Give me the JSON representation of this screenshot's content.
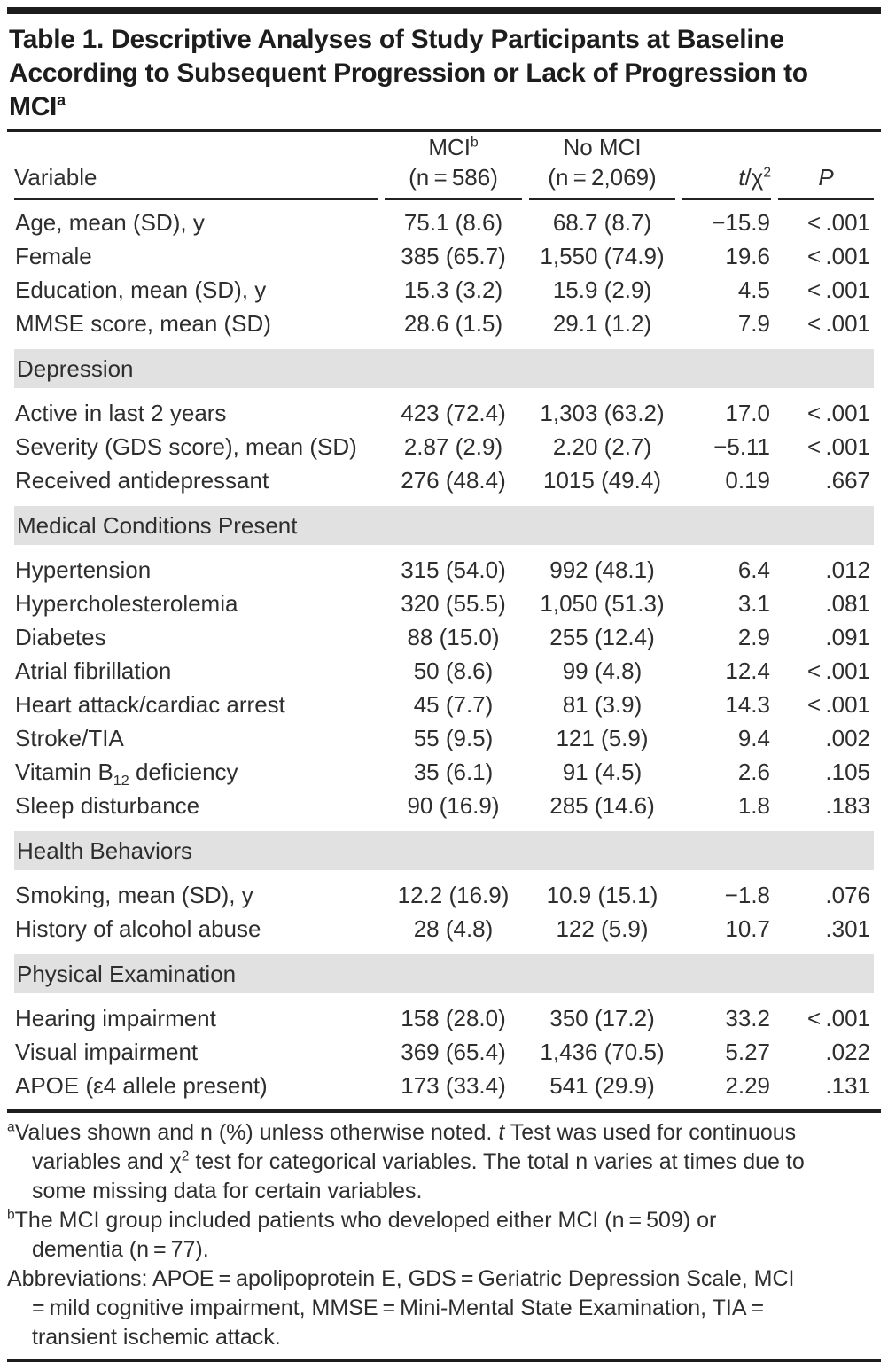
{
  "title_html": "Table 1. Descriptive Analyses of Study Participants at Baseline According to Subsequent Progression or Lack of Progression to MCI<sup>a</sup>",
  "header": {
    "variable": "Variable",
    "mci_line1_html": "MCI<sup>b</sup>",
    "mci_line2": "(n = 586)",
    "nomci_line1": "No MCI",
    "nomci_line2": "(n = 2,069)",
    "stat_html": "<i>t</i>/χ<sup>2</sup>",
    "p_html": "<i>P</i>"
  },
  "sections": [
    {
      "heading": null,
      "rows": [
        {
          "label_html": "Age, mean (SD), y",
          "mci": "75.1 (8.6)",
          "no_mci": "68.7 (8.7)",
          "stat": "−15.9",
          "p": "< .001"
        },
        {
          "label_html": "Female",
          "mci": "385 (65.7)",
          "no_mci": "1,550 (74.9)",
          "stat": "19.6",
          "p": "< .001"
        },
        {
          "label_html": "Education, mean (SD), y",
          "mci": "15.3 (3.2)",
          "no_mci": "15.9 (2.9)",
          "stat": "4.5",
          "p": "< .001"
        },
        {
          "label_html": "MMSE score, mean (SD)",
          "mci": "28.6 (1.5)",
          "no_mci": "29.1 (1.2)",
          "stat": "7.9",
          "p": "< .001"
        }
      ]
    },
    {
      "heading": "Depression",
      "rows": [
        {
          "label_html": "Active in last 2 years",
          "mci": "423 (72.4)",
          "no_mci": "1,303 (63.2)",
          "stat": "17.0",
          "p": "< .001"
        },
        {
          "label_html": "Severity (GDS score), mean (SD)",
          "mci": "2.87 (2.9)",
          "no_mci": "2.20 (2.7)",
          "stat": "−5.11",
          "p": "< .001"
        },
        {
          "label_html": "Received antidepressant",
          "mci": "276 (48.4)",
          "no_mci": "1015 (49.4)",
          "stat": "0.19",
          "p": ".667"
        }
      ]
    },
    {
      "heading": "Medical Conditions Present",
      "rows": [
        {
          "label_html": "Hypertension",
          "mci": "315 (54.0)",
          "no_mci": "992 (48.1)",
          "stat": "6.4",
          "p": ".012"
        },
        {
          "label_html": "Hypercholesterolemia",
          "mci": "320 (55.5)",
          "no_mci": "1,050 (51.3)",
          "stat": "3.1",
          "p": ".081"
        },
        {
          "label_html": "Diabetes",
          "mci": "88 (15.0)",
          "no_mci": "255 (12.4)",
          "stat": "2.9",
          "p": ".091"
        },
        {
          "label_html": "Atrial fibrillation",
          "mci": "50 (8.6)",
          "no_mci": "99 (4.8)",
          "stat": "12.4",
          "p": "< .001"
        },
        {
          "label_html": "Heart attack/cardiac arrest",
          "mci": "45 (7.7)",
          "no_mci": "81 (3.9)",
          "stat": "14.3",
          "p": "< .001"
        },
        {
          "label_html": "Stroke/TIA",
          "mci": "55 (9.5)",
          "no_mci": "121 (5.9)",
          "stat": "9.4",
          "p": ".002"
        },
        {
          "label_html": "Vitamin B<sub>12</sub> deficiency",
          "mci": "35 (6.1)",
          "no_mci": "91 (4.5)",
          "stat": "2.6",
          "p": ".105"
        },
        {
          "label_html": "Sleep disturbance",
          "mci": "90 (16.9)",
          "no_mci": "285 (14.6)",
          "stat": "1.8",
          "p": ".183"
        }
      ]
    },
    {
      "heading": "Health Behaviors",
      "rows": [
        {
          "label_html": "Smoking, mean (SD), y",
          "mci": "12.2 (16.9)",
          "no_mci": "10.9 (15.1)",
          "stat": "−1.8",
          "p": ".076"
        },
        {
          "label_html": "History of alcohol abuse",
          "mci": "28 (4.8)",
          "no_mci": "122 (5.9)",
          "stat": "10.7",
          "p": ".301"
        }
      ]
    },
    {
      "heading": "Physical Examination",
      "rows": [
        {
          "label_html": "Hearing impairment",
          "mci": "158 (28.0)",
          "no_mci": "350 (17.2)",
          "stat": "33.2",
          "p": "< .001"
        },
        {
          "label_html": "Visual impairment",
          "mci": "369 (65.4)",
          "no_mci": "1,436 (70.5)",
          "stat": "5.27",
          "p": ".022"
        },
        {
          "label_html": "APOE (ε4 allele present)",
          "mci": "173 (33.4)",
          "no_mci": "541 (29.9)",
          "stat": "2.29",
          "p": ".131"
        }
      ]
    }
  ],
  "footnotes": [
    {
      "html": "<sup>a</sup>Values shown and n (%) unless otherwise noted. <i>t</i> Test was used for continuous variables and χ<sup>2</sup> test for categorical variables. The total n varies at times due to some missing data for certain variables."
    },
    {
      "html": "<sup>b</sup>The MCI group included patients who developed either MCI (n = 509) or dementia (n = 77)."
    },
    {
      "html": "Abbreviations: APOE = apolipoprotein E, GDS = Geriatric Depression Scale, MCI = mild cognitive impairment, MMSE = Mini-Mental State Examination, TIA = transient ischemic attack."
    }
  ],
  "colors": {
    "page_bg": "#ffffff",
    "text": "#2e2e2e",
    "title_text": "#1d1d1d",
    "rule": "#1d1d1d",
    "section_band_bg": "#e1e1e1"
  }
}
